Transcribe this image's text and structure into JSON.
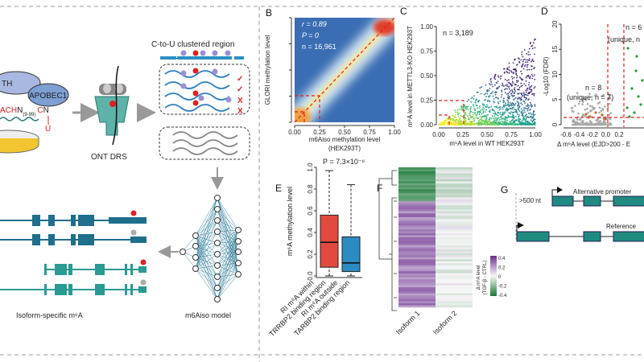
{
  "panel_a": {
    "enzyme_left": "TH",
    "enzyme_right": "APOBEC1",
    "motif_red": "ACH",
    "motif_n": "N",
    "motif_sub": "(9-99)",
    "motif_c": "C",
    "motif_n2": "N",
    "motif_u": "U",
    "ont_label": "ONT DRS",
    "region_title": "C-to-U clustered region",
    "u_mark": "U",
    "m6a_mark": "m6A",
    "check": "✓",
    "cross": "X",
    "model_label": "m6Aiso model",
    "isoform_label": "Isoform-specific m⁶A"
  },
  "panel_b": {
    "letter": "B",
    "ylabel": "GLORI methylation level",
    "xlabel": "m6Aiso methylation level",
    "xlabel2": "(HEK293T)",
    "ticks": [
      "0.00",
      "0.25",
      "0.50",
      "0.75",
      "1.00"
    ],
    "stat_r": "r = 0.89",
    "stat_p": "P = 0",
    "stat_n": "n = 16,961",
    "colors": {
      "background": "#3a6db3",
      "peak": "#e0372a"
    }
  },
  "panel_c": {
    "letter": "C",
    "ylabel": "m⁶A level in METTL3-KO HEK293T",
    "xlabel": "m⁶A level in WT HEK293T",
    "ticks": [
      "0.00",
      "0.25",
      "0.50",
      "0.75",
      "1.00"
    ],
    "stat_n": "n = 3,189"
  },
  "panel_d": {
    "letter": "D",
    "ylabel": "-Log10 (FDR)",
    "xlabel": "Δ m⁶A level (EJD>200 - E",
    "yticks": [
      "0",
      "5",
      "10",
      "15",
      "20"
    ],
    "xticks": [
      "-0.6",
      "-0.4",
      "-0.2",
      "0.0",
      "0.2"
    ],
    "ann_right_1": "n = 6",
    "ann_right_2": "(unique, n",
    "ann_left_1": "n = 8",
    "ann_left_2": "(unique, n = 7)"
  },
  "panel_e": {
    "letter": "E",
    "pvalue": "P = 7.3×10⁻⁶",
    "ylabel": "m⁶A methylation level",
    "yticks": [
      "0.0",
      "0.2",
      "0.4",
      "0.6",
      "0.8",
      "1.0"
    ],
    "groups": [
      {
        "label1": "RI m⁶A within",
        "label2": "TRRBP2 binding region",
        "color": "#e04a3f",
        "min": 0.0,
        "q1": 0.08,
        "median": 0.31,
        "q3": 0.56,
        "max": 0.97
      },
      {
        "label1": "RI m⁶A outside",
        "label2": "TARBP2 binding region",
        "color": "#2b8cc4",
        "min": 0.0,
        "q1": 0.04,
        "median": 0.12,
        "q3": 0.36,
        "max": 0.84
      }
    ]
  },
  "panel_f": {
    "letter": "F",
    "columns": [
      "Isoform 1",
      "Isoform 2"
    ],
    "legend_title1": "Δ m⁶A level",
    "legend_title2": "(TGF-β - CTRL)",
    "legend_ticks": [
      "0.4",
      "0.2",
      "0",
      "-0.2",
      "-0.4"
    ],
    "colors": {
      "high": "#6a2c8e",
      "mid": "#f7f7f7",
      "low": "#1b7837"
    }
  },
  "panel_g": {
    "letter": "G",
    "distance": ">500 nt",
    "track1": "Alternative promoter",
    "track2": "Reference",
    "exon_color": "#1f8a80"
  }
}
